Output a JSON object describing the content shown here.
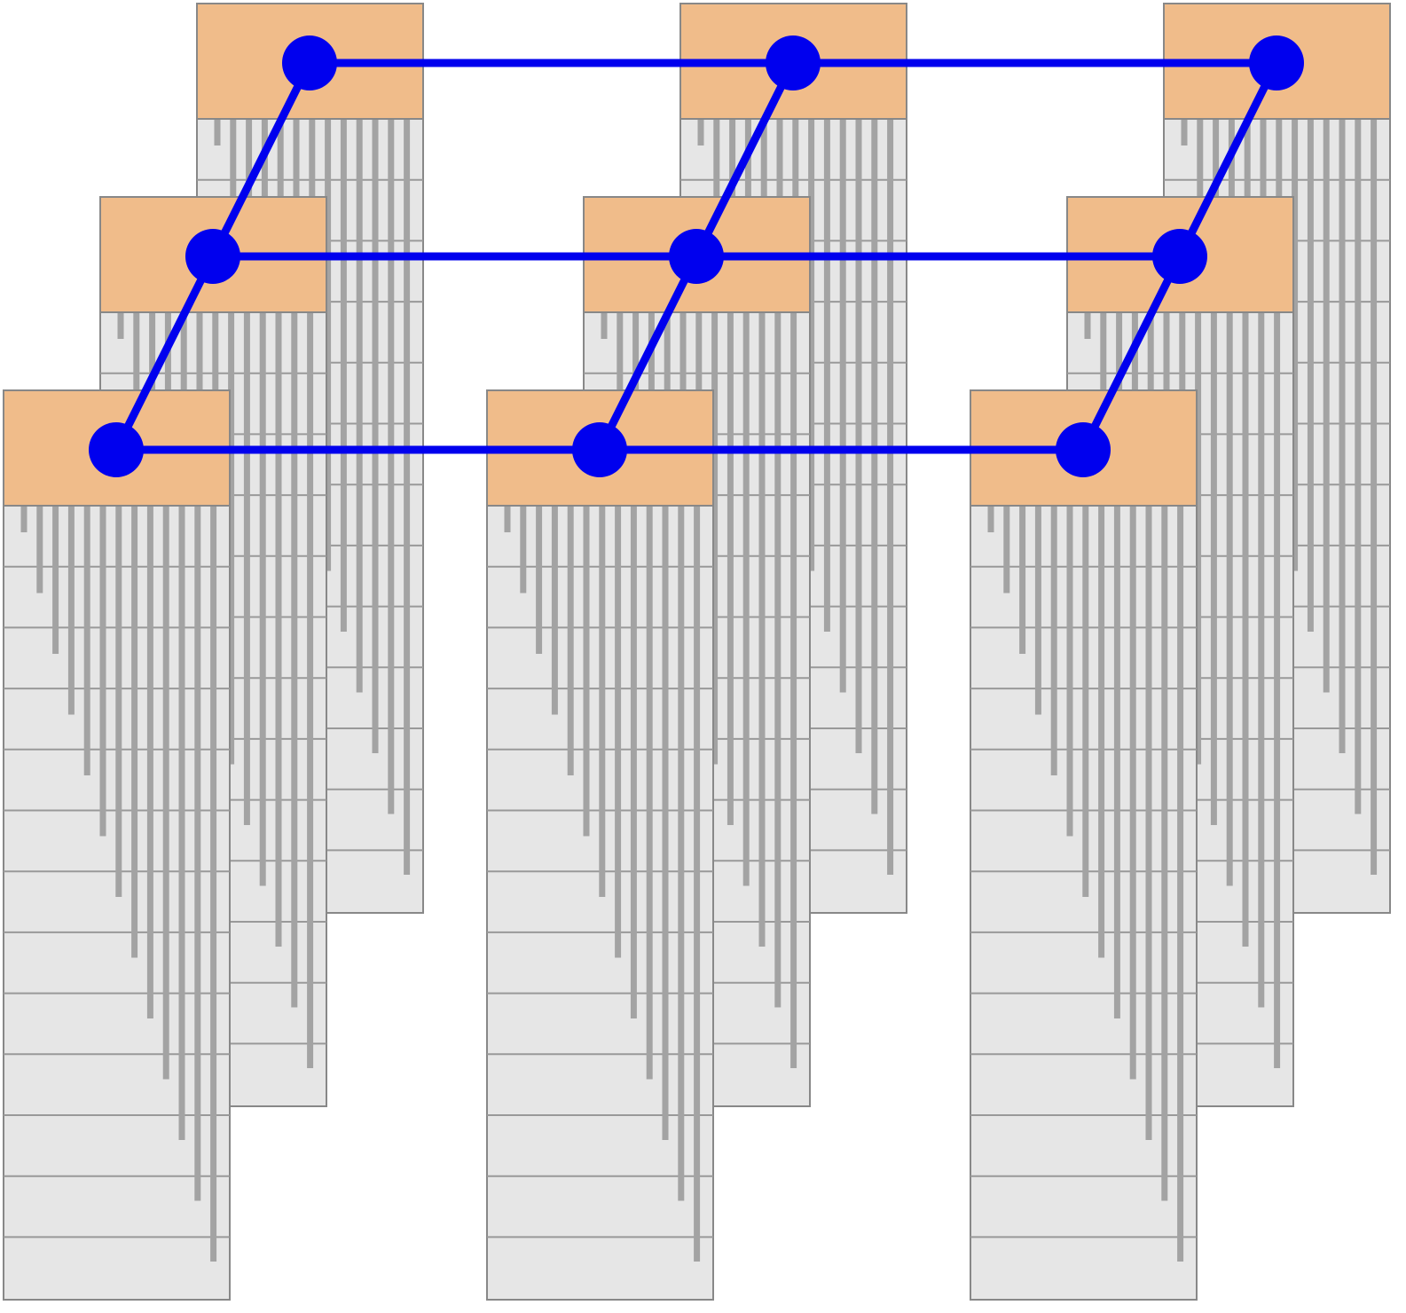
{
  "diagram": {
    "grid": {
      "rows": 3,
      "cols": 3
    },
    "node_block": {
      "columns_per_block": 13,
      "rows_per_block": 13
    },
    "colors": {
      "background": "#ffffff",
      "header_fill": "#f0bc8a",
      "body_fill": "#e6e6e6",
      "block_border": "#888888",
      "row_line": "#999999",
      "column_bar": "#a3a3a3",
      "link": "#0000ee",
      "node": "#0000ee"
    }
  }
}
